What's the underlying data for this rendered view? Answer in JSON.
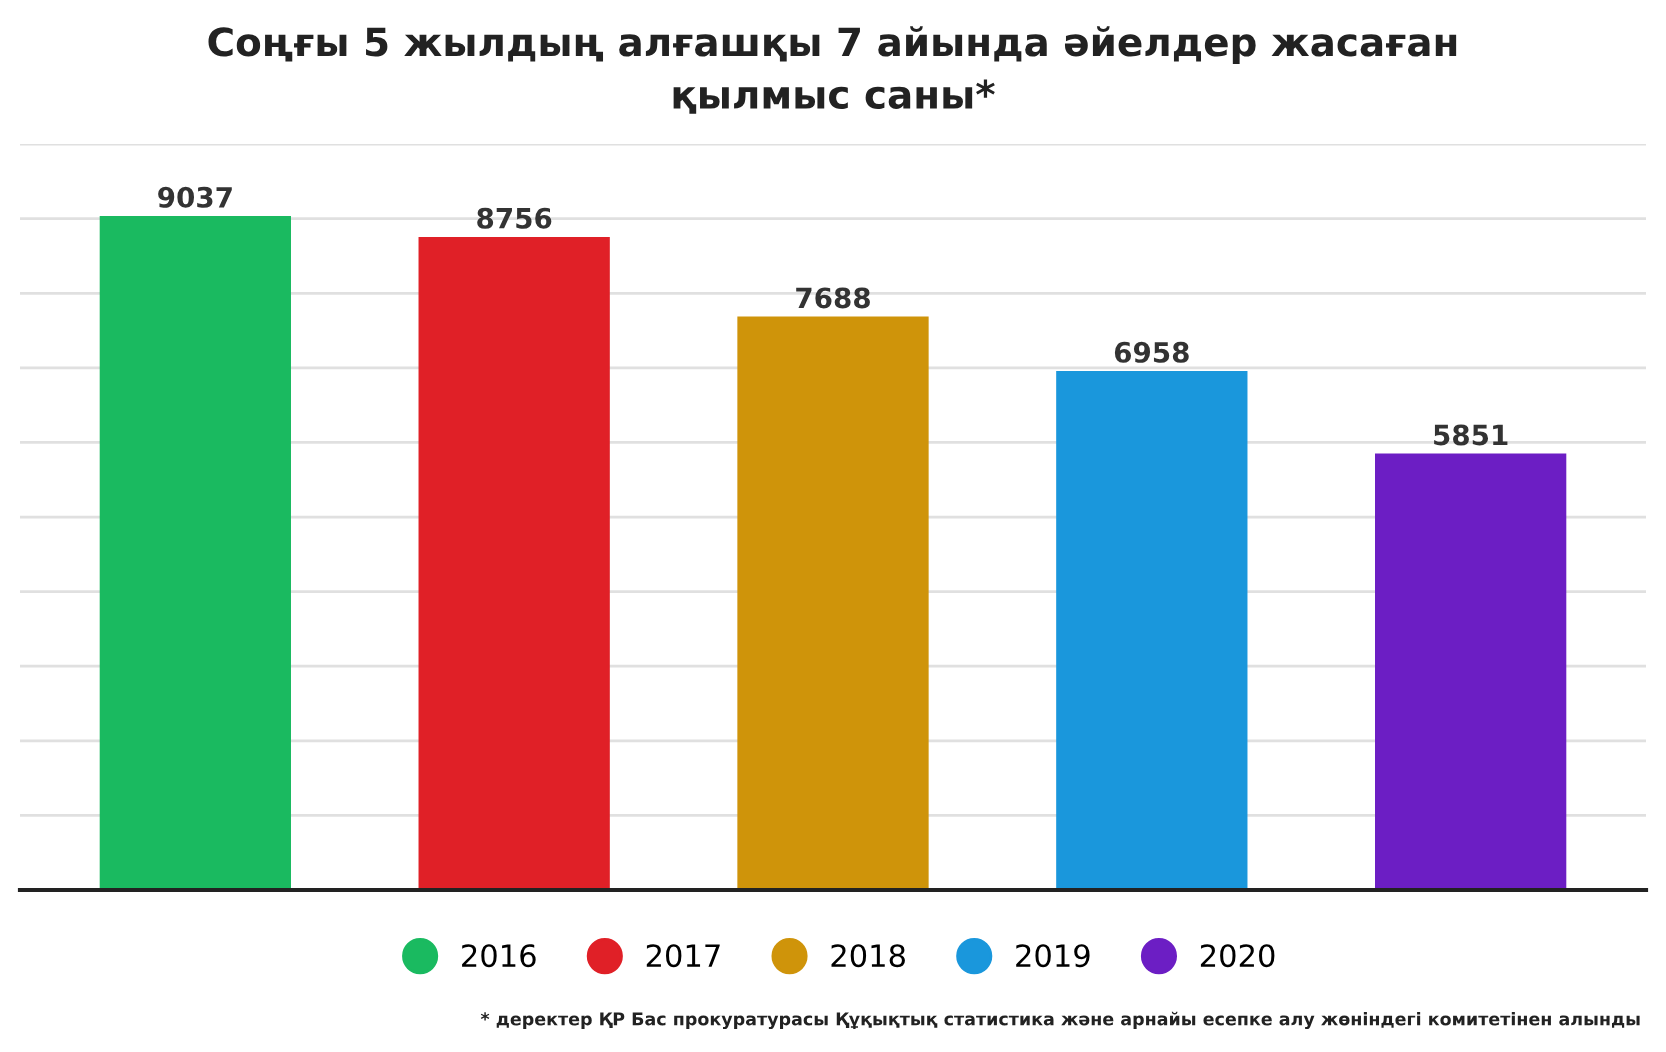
{
  "chart_data": {
    "type": "bar",
    "title": "Соңғы 5 жылдың алғашқы 7 айында әйелдер жасаған қылмыс саны*",
    "categories": [
      null,
      null,
      null,
      null,
      null
    ],
    "series": [
      {
        "name": "2016",
        "color": "#1aba60",
        "values": [
          9037,
          null,
          null,
          null,
          null
        ]
      },
      {
        "name": "2017",
        "color": "#e02027",
        "values": [
          null,
          8756,
          null,
          null,
          null
        ]
      },
      {
        "name": "2018",
        "color": "#cf940a",
        "values": [
          null,
          null,
          7688,
          null,
          null
        ]
      },
      {
        "name": "2019",
        "color": "#1a97dc",
        "values": [
          null,
          null,
          null,
          6958,
          null
        ]
      },
      {
        "name": "2020",
        "color": "#6c1ec4",
        "values": [
          null,
          null,
          null,
          null,
          5851
        ]
      }
    ],
    "ylim": [
      0,
      10000
    ],
    "yticks": [
      {
        "value": 1000,
        "label": null
      },
      {
        "value": 2000,
        "label": null
      },
      {
        "value": 3000,
        "label": null
      },
      {
        "value": 4000,
        "label": null
      },
      {
        "value": 5000,
        "label": null
      },
      {
        "value": 6000,
        "label": null
      },
      {
        "value": 7000,
        "label": null
      },
      {
        "value": 8000,
        "label": null
      },
      {
        "value": 9000,
        "label": null
      },
      {
        "value": 10000,
        "label": null
      }
    ],
    "grid": "y",
    "data_labels": true,
    "stacked": true,
    "legend": "bottom",
    "annotations": [
      "* деректер ҚР Бас прокуратурасы Құқықтық статистика және арнайы есепке алу жөніндегі комитетінен алынды"
    ]
  }
}
